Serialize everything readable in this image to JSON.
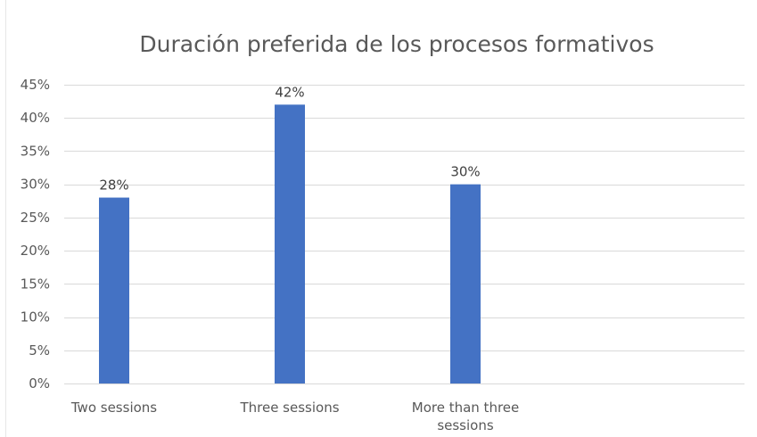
{
  "chart_data": {
    "type": "bar",
    "title": "Duración preferida de los procesos formativos",
    "xlabel": "",
    "ylabel": "",
    "categories": [
      "Two sessions",
      "Three sessions",
      "More than three sessions"
    ],
    "values": [
      28,
      42,
      30
    ],
    "data_labels": [
      "28%",
      "42%",
      "30%"
    ],
    "ylim": [
      0,
      45
    ],
    "ytick_step": 5,
    "ytick_suffix": "%",
    "grid": true,
    "legend": "none",
    "bar_color": "#4472C4",
    "grid_color": "#D9D9D9"
  }
}
